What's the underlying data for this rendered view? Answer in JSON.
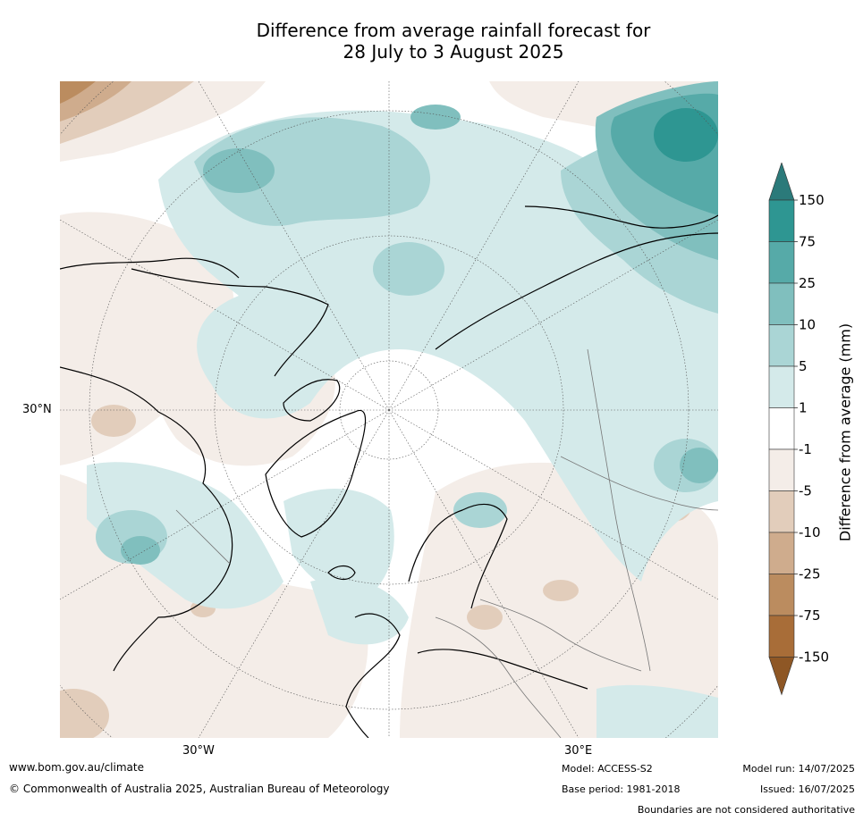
{
  "title_line1": "Difference from average rainfall forecast for",
  "title_line2": "28 July to 3 August 2025",
  "map": {
    "labels": {
      "lat_30n": "30°N",
      "lon_30w": "30°W",
      "lon_30e": "30°E"
    }
  },
  "colorbar": {
    "title": "Difference from average (mm)",
    "ticks": [
      "150",
      "75",
      "25",
      "10",
      "5",
      "1",
      "-1",
      "-5",
      "-10",
      "-25",
      "-75",
      "-150"
    ],
    "colors": [
      "#2e9692",
      "#56aaa8",
      "#80bfbe",
      "#aad5d5",
      "#d4eaea",
      "#ffffff",
      "#f4ede8",
      "#e2cdbb",
      "#cfac8d",
      "#bb8c5f",
      "#a86d38",
      "#8e5725",
      "#2b7a7a"
    ]
  },
  "footer": {
    "website": "www.bom.gov.au/climate",
    "copyright": "© Commonwealth of Australia 2025, Australian Bureau of Meteorology",
    "model": "Model: ACCESS-S2",
    "base_period": "Base period: 1981-2018",
    "model_run": "Model run: 14/07/2025",
    "issued": "Issued: 16/07/2025",
    "disclaimer": "Boundaries are not considered authoritative"
  }
}
